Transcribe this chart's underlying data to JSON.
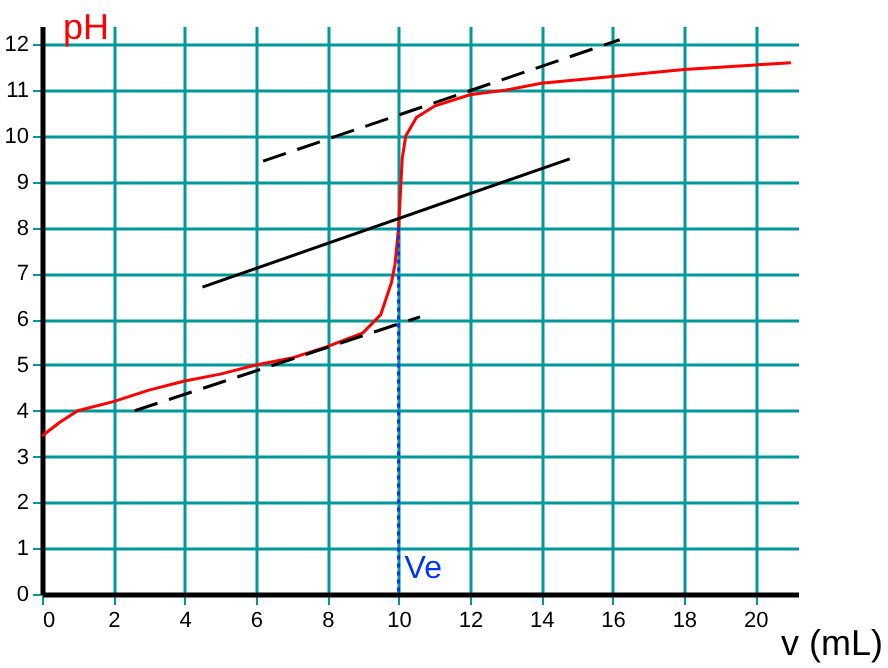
{
  "chart_data": {
    "type": "line",
    "xlabel": "v (mL)",
    "ylabel": "pH",
    "xlim": [
      0,
      21.2
    ],
    "ylim": [
      0,
      12.4
    ],
    "xticks": [
      0,
      2,
      4,
      6,
      8,
      10,
      12,
      14,
      16,
      18,
      20
    ],
    "yticks": [
      0,
      1,
      2,
      3,
      4,
      5,
      6,
      7,
      8,
      9,
      10,
      11,
      12
    ],
    "grid": true,
    "marker": "none",
    "series": [
      {
        "color": "#ff0000",
        "line_style": "solid",
        "x": [
          0,
          0.5,
          1,
          2,
          3,
          4,
          5,
          6,
          7,
          8,
          9,
          9.5,
          9.8,
          9.9,
          10,
          10.1,
          10.2,
          10.5,
          11,
          12,
          13,
          14,
          16,
          18,
          20,
          21
        ],
        "values": [
          3.45,
          3.75,
          4.0,
          4.2,
          4.45,
          4.65,
          4.8,
          5.0,
          5.15,
          5.4,
          5.7,
          6.1,
          6.8,
          7.2,
          8.0,
          9.5,
          10.0,
          10.4,
          10.65,
          10.9,
          11.0,
          11.15,
          11.3,
          11.45,
          11.55,
          11.6
        ]
      },
      {
        "color": "#000000",
        "line_style": "dashed",
        "x": [
          2.6,
          10.6
        ],
        "values": [
          4.0,
          6.05
        ]
      },
      {
        "color": "#000000",
        "line_style": "dashed",
        "x": [
          6.2,
          16.2
        ],
        "values": [
          9.45,
          12.1
        ]
      },
      {
        "color": "#000000",
        "line_style": "solid",
        "x": [
          4.5,
          14.8
        ],
        "values": [
          6.7,
          9.5
        ]
      },
      {
        "color": "#0033ff",
        "line_style": "dotted",
        "x": [
          10,
          10
        ],
        "values": [
          8.0,
          0
        ]
      }
    ],
    "annotations": [
      {
        "text": "Ve",
        "x": 10,
        "y": 0
      }
    ]
  }
}
